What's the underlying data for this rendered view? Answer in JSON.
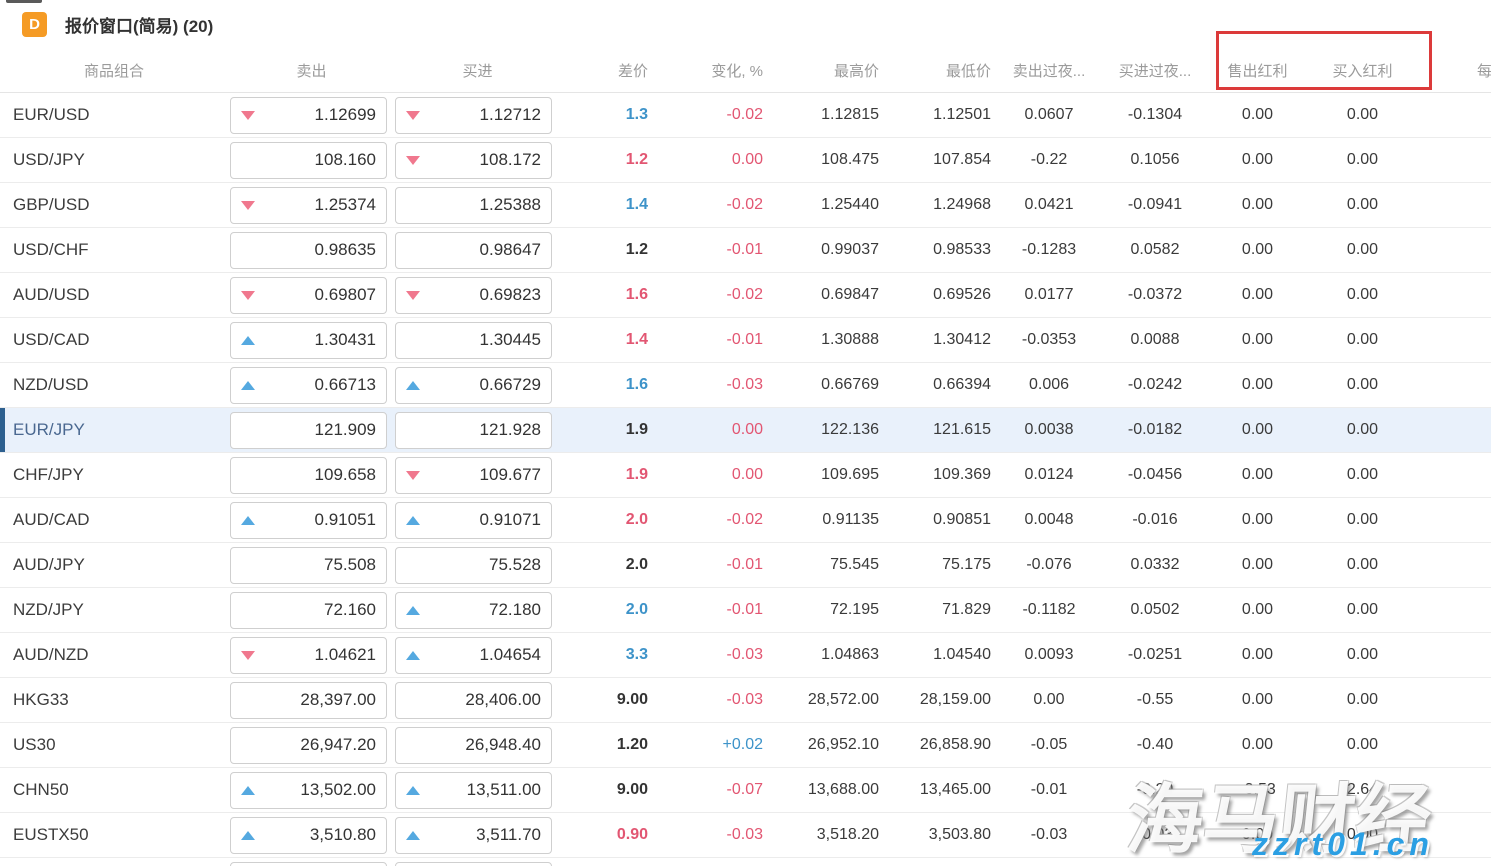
{
  "window": {
    "icon_letter": "D",
    "title": "报价窗口(简易) (20)"
  },
  "columns": {
    "symbol": "商品组合",
    "sell": "卖出",
    "buy": "买进",
    "spread": "差价",
    "change": "变化, %",
    "high": "最高价",
    "low": "最低价",
    "sell_overnight": "卖出过夜...",
    "buy_overnight": "买进过夜...",
    "sell_dividend": "售出红利",
    "buy_dividend": "买入红利",
    "per": "每"
  },
  "colors": {
    "accent_red_text": "#e25672",
    "accent_blue_text": "#3d93c9",
    "arrow_down": "#f0788e",
    "arrow_up": "#55a9e0",
    "highlight_row_bg": "#e9f1fb",
    "highlight_row_bar": "#2d608f",
    "annotation_red": "#dc3a3a",
    "app_icon_orange": "#f59b25",
    "watermark_blue": "#2b9fe3"
  },
  "watermark": {
    "brand": "海马财经",
    "url": "zzrt01.cn"
  },
  "rows": [
    {
      "symbol": "EUR/USD",
      "sell_arrow": "down",
      "sell": "1.12699",
      "buy_arrow": "down",
      "buy": "1.12712",
      "spread": "1.3",
      "spread_color": "blue",
      "change": "-0.02",
      "change_color": "red",
      "high": "1.12815",
      "low": "1.12501",
      "sell_overnight": "0.0607",
      "buy_overnight": "-0.1304",
      "sell_dividend": "0.00",
      "buy_dividend": "0.00",
      "highlighted": false
    },
    {
      "symbol": "USD/JPY",
      "sell_arrow": "none",
      "sell": "108.160",
      "buy_arrow": "down",
      "buy": "108.172",
      "spread": "1.2",
      "spread_color": "red",
      "change": "0.00",
      "change_color": "red",
      "high": "108.475",
      "low": "107.854",
      "sell_overnight": "-0.22",
      "buy_overnight": "0.1056",
      "sell_dividend": "0.00",
      "buy_dividend": "0.00",
      "highlighted": false
    },
    {
      "symbol": "GBP/USD",
      "sell_arrow": "down",
      "sell": "1.25374",
      "buy_arrow": "none",
      "buy": "1.25388",
      "spread": "1.4",
      "spread_color": "blue",
      "change": "-0.02",
      "change_color": "red",
      "high": "1.25440",
      "low": "1.24968",
      "sell_overnight": "0.0421",
      "buy_overnight": "-0.0941",
      "sell_dividend": "0.00",
      "buy_dividend": "0.00",
      "highlighted": false
    },
    {
      "symbol": "USD/CHF",
      "sell_arrow": "none",
      "sell": "0.98635",
      "buy_arrow": "none",
      "buy": "0.98647",
      "spread": "1.2",
      "spread_color": "dark",
      "change": "-0.01",
      "change_color": "red",
      "high": "0.99037",
      "low": "0.98533",
      "sell_overnight": "-0.1283",
      "buy_overnight": "0.0582",
      "sell_dividend": "0.00",
      "buy_dividend": "0.00",
      "highlighted": false
    },
    {
      "symbol": "AUD/USD",
      "sell_arrow": "down",
      "sell": "0.69807",
      "buy_arrow": "down",
      "buy": "0.69823",
      "spread": "1.6",
      "spread_color": "red",
      "change": "-0.02",
      "change_color": "red",
      "high": "0.69847",
      "low": "0.69526",
      "sell_overnight": "0.0177",
      "buy_overnight": "-0.0372",
      "sell_dividend": "0.00",
      "buy_dividend": "0.00",
      "highlighted": false
    },
    {
      "symbol": "USD/CAD",
      "sell_arrow": "up",
      "sell": "1.30431",
      "buy_arrow": "none",
      "buy": "1.30445",
      "spread": "1.4",
      "spread_color": "red",
      "change": "-0.01",
      "change_color": "red",
      "high": "1.30888",
      "low": "1.30412",
      "sell_overnight": "-0.0353",
      "buy_overnight": "0.0088",
      "sell_dividend": "0.00",
      "buy_dividend": "0.00",
      "highlighted": false
    },
    {
      "symbol": "NZD/USD",
      "sell_arrow": "up",
      "sell": "0.66713",
      "buy_arrow": "up",
      "buy": "0.66729",
      "spread": "1.6",
      "spread_color": "blue",
      "change": "-0.03",
      "change_color": "red",
      "high": "0.66769",
      "low": "0.66394",
      "sell_overnight": "0.006",
      "buy_overnight": "-0.0242",
      "sell_dividend": "0.00",
      "buy_dividend": "0.00",
      "highlighted": false
    },
    {
      "symbol": "EUR/JPY",
      "sell_arrow": "none",
      "sell": "121.909",
      "buy_arrow": "none",
      "buy": "121.928",
      "spread": "1.9",
      "spread_color": "dark",
      "change": "0.00",
      "change_color": "red",
      "high": "122.136",
      "low": "121.615",
      "sell_overnight": "0.0038",
      "buy_overnight": "-0.0182",
      "sell_dividend": "0.00",
      "buy_dividend": "0.00",
      "highlighted": true
    },
    {
      "symbol": "CHF/JPY",
      "sell_arrow": "none",
      "sell": "109.658",
      "buy_arrow": "down",
      "buy": "109.677",
      "spread": "1.9",
      "spread_color": "red",
      "change": "0.00",
      "change_color": "red",
      "high": "109.695",
      "low": "109.369",
      "sell_overnight": "0.0124",
      "buy_overnight": "-0.0456",
      "sell_dividend": "0.00",
      "buy_dividend": "0.00",
      "highlighted": false
    },
    {
      "symbol": "AUD/CAD",
      "sell_arrow": "up",
      "sell": "0.91051",
      "buy_arrow": "up",
      "buy": "0.91071",
      "spread": "2.0",
      "spread_color": "red",
      "change": "-0.02",
      "change_color": "red",
      "high": "0.91135",
      "low": "0.90851",
      "sell_overnight": "0.0048",
      "buy_overnight": "-0.016",
      "sell_dividend": "0.00",
      "buy_dividend": "0.00",
      "highlighted": false
    },
    {
      "symbol": "AUD/JPY",
      "sell_arrow": "none",
      "sell": "75.508",
      "buy_arrow": "none",
      "buy": "75.528",
      "spread": "2.0",
      "spread_color": "dark",
      "change": "-0.01",
      "change_color": "red",
      "high": "75.545",
      "low": "75.175",
      "sell_overnight": "-0.076",
      "buy_overnight": "0.0332",
      "sell_dividend": "0.00",
      "buy_dividend": "0.00",
      "highlighted": false
    },
    {
      "symbol": "NZD/JPY",
      "sell_arrow": "none",
      "sell": "72.160",
      "buy_arrow": "up",
      "buy": "72.180",
      "spread": "2.0",
      "spread_color": "blue",
      "change": "-0.01",
      "change_color": "red",
      "high": "72.195",
      "low": "71.829",
      "sell_overnight": "-0.1182",
      "buy_overnight": "0.0502",
      "sell_dividend": "0.00",
      "buy_dividend": "0.00",
      "highlighted": false
    },
    {
      "symbol": "AUD/NZD",
      "sell_arrow": "down",
      "sell": "1.04621",
      "buy_arrow": "up",
      "buy": "1.04654",
      "spread": "3.3",
      "spread_color": "blue",
      "change": "-0.03",
      "change_color": "red",
      "high": "1.04863",
      "low": "1.04540",
      "sell_overnight": "0.0093",
      "buy_overnight": "-0.0251",
      "sell_dividend": "0.00",
      "buy_dividend": "0.00",
      "highlighted": false
    },
    {
      "symbol": "HKG33",
      "sell_arrow": "none",
      "sell": "28,397.00",
      "buy_arrow": "none",
      "buy": "28,406.00",
      "spread": "9.00",
      "spread_color": "dark",
      "change": "-0.03",
      "change_color": "red",
      "high": "28,572.00",
      "low": "28,159.00",
      "sell_overnight": "0.00",
      "buy_overnight": "-0.55",
      "sell_dividend": "0.00",
      "buy_dividend": "0.00",
      "highlighted": false
    },
    {
      "symbol": "US30",
      "sell_arrow": "none",
      "sell": "26,947.20",
      "buy_arrow": "none",
      "buy": "26,948.40",
      "spread": "1.20",
      "spread_color": "dark",
      "change": "+0.02",
      "change_color": "blue",
      "high": "26,952.10",
      "low": "26,858.90",
      "sell_overnight": "-0.05",
      "buy_overnight": "-0.40",
      "sell_dividend": "0.00",
      "buy_dividend": "0.00",
      "highlighted": false
    },
    {
      "symbol": "CHN50",
      "sell_arrow": "up",
      "sell": "13,502.00",
      "buy_arrow": "up",
      "buy": "13,511.00",
      "spread": "9.00",
      "spread_color": "dark",
      "change": "-0.07",
      "change_color": "red",
      "high": "13,688.00",
      "low": "13,465.00",
      "sell_overnight": "-0.01",
      "buy_overnight": "-0.20",
      "sell_dividend": "-3.53",
      "buy_dividend": "2.64",
      "highlighted": false
    },
    {
      "symbol": "EUSTX50",
      "sell_arrow": "up",
      "sell": "3,510.80",
      "buy_arrow": "up",
      "buy": "3,511.70",
      "spread": "0.90",
      "spread_color": "red",
      "change": "-0.03",
      "change_color": "red",
      "high": "3,518.20",
      "low": "3,503.80",
      "sell_overnight": "-0.03",
      "buy_overnight": "-0.03",
      "sell_dividend": "0.00",
      "buy_dividend": "0.00",
      "highlighted": false
    }
  ]
}
